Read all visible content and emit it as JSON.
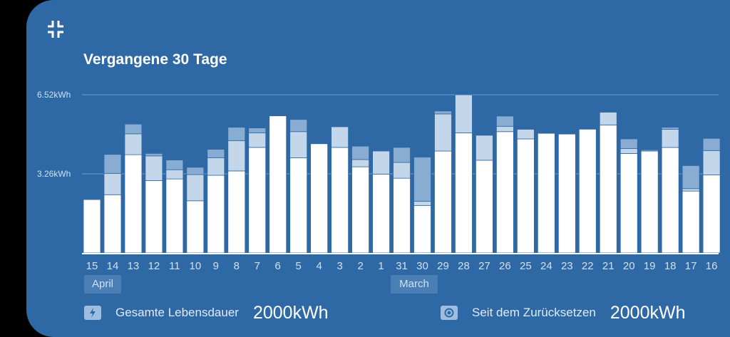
{
  "widget": {
    "title": "Vergangene 30 Tage",
    "collapse_icon": "collapse-arrows-icon"
  },
  "months": [
    "April",
    "March"
  ],
  "footer": {
    "lifetime": {
      "icon": "lightning-bolt-icon",
      "label": "Gesamte Lebensdauer",
      "value": "2000kWh"
    },
    "since_reset": {
      "icon": "reset-target-icon",
      "label": "Seit dem Zurücksetzen",
      "value": "2000kWh"
    }
  },
  "colors": {
    "card_bg": "#2e69a6",
    "segment_1": "#ffffff",
    "segment_2": "#c4d6ea",
    "segment_3": "#89acd2"
  },
  "chart_data": {
    "type": "bar",
    "stacked": true,
    "y_tick_labels": [
      "6.52kWh",
      "3.26kWh"
    ],
    "y_ticks": [
      6.52,
      3.26
    ],
    "ylim": [
      0,
      6.52
    ],
    "categories": [
      "15",
      "14",
      "13",
      "12",
      "11",
      "10",
      "9",
      "8",
      "7",
      "6",
      "5",
      "4",
      "3",
      "2",
      "1",
      "31",
      "30",
      "29",
      "28",
      "27",
      "26",
      "25",
      "24",
      "23",
      "22",
      "21",
      "20",
      "19",
      "18",
      "17",
      "16"
    ],
    "series": [
      {
        "values": [
          2.2,
          2.4,
          4.05,
          2.98,
          3.05,
          2.15,
          3.2,
          3.38,
          4.35,
          5.65,
          3.92,
          4.5,
          4.35,
          3.55,
          3.25,
          3.08,
          1.95,
          4.2,
          4.95,
          3.82,
          5.0,
          4.7,
          4.93,
          4.9,
          5.1,
          5.27,
          4.1,
          4.2,
          4.35,
          2.55,
          3.22
        ]
      },
      {
        "values": [
          0,
          0.88,
          0.86,
          1.02,
          0.38,
          1.08,
          0.72,
          1.25,
          0.6,
          0,
          1.08,
          0,
          0.85,
          0.3,
          0.95,
          0.65,
          0.18,
          1.53,
          1.57,
          1.03,
          0.22,
          0.4,
          0,
          0,
          0,
          0.53,
          0.2,
          0,
          0.75,
          0.1,
          1.0
        ]
      },
      {
        "values": [
          0,
          0.78,
          0.4,
          0.1,
          0.4,
          0.3,
          0.35,
          0.55,
          0.2,
          0,
          0.5,
          0,
          0,
          0.55,
          0,
          0.62,
          1.82,
          0.12,
          0,
          0,
          0.42,
          0.02,
          0,
          0,
          0,
          0,
          0.4,
          0.05,
          0.08,
          0.95,
          0.5
        ]
      }
    ]
  }
}
